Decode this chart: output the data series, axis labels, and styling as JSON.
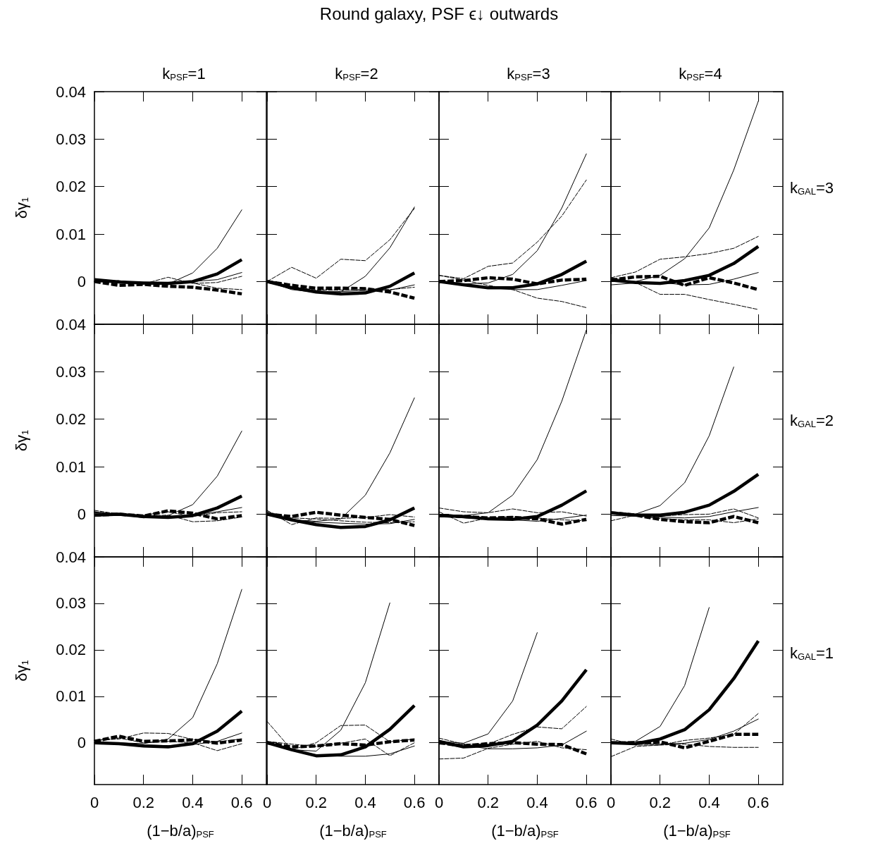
{
  "chart_data": [
    {
      "type": "line",
      "annotations": [
        "Round galaxy, PSF ϵ↓ outwards"
      ],
      "title": "k$_{PSF}$=1",
      "ylabel": "δγ$_{1}$",
      "tick_labels": "y",
      "x": [
        0,
        0.1,
        0.2,
        0.3,
        0.4,
        0.5,
        0.6
      ],
      "xlim": [
        0,
        0.7
      ],
      "xticks": [
        0,
        0.2,
        0.4,
        0.6
      ],
      "ylim": [
        -0.009,
        0.04
      ],
      "yticks": [
        0,
        0.01,
        0.02,
        0.03,
        0.04
      ],
      "series": [
        {
          "color": "#000000",
          "line_style": "solid",
          "values": [
            0.0004,
            -0.0001,
            -0.0003,
            -0.0004,
            0,
            0.0016,
            0.0046
          ]
        },
        {
          "color": "#000000",
          "line_style": "dashed",
          "values": [
            0,
            -0.0008,
            -0.0006,
            -0.001,
            -0.0012,
            -0.0018,
            -0.0026
          ]
        },
        {
          "color": "#000000",
          "line_style": "solid",
          "values": [
            0,
            -0.0003,
            -0.0005,
            -0.0005,
            0.0018,
            0.007,
            0.0151
          ]
        },
        {
          "color": "#000000",
          "line_style": "solid",
          "values": [
            0,
            -0.0002,
            -0.0004,
            -0.0004,
            0,
            0.0004,
            0.0019
          ]
        },
        {
          "color": "#000000",
          "line_style": "dashed",
          "values": [
            0,
            0.0002,
            -0.0005,
            0.0009,
            -0.0004,
            -0.0002,
            0.0011
          ]
        },
        {
          "color": "#000000",
          "line_style": "dashed",
          "values": [
            0,
            0,
            -0.0006,
            -0.0004,
            -0.0003,
            -0.0014,
            -0.0017
          ]
        }
      ]
    },
    {
      "type": "line",
      "title": "k$_{PSF}$=2",
      "tick_labels": false,
      "x": [
        0,
        0.1,
        0.2,
        0.3,
        0.4,
        0.5,
        0.6
      ],
      "xlim": [
        0,
        0.7
      ],
      "xticks": [
        0,
        0.2,
        0.4,
        0.6
      ],
      "ylim": [
        -0.009,
        0.04
      ],
      "yticks": [
        0,
        0.01,
        0.02,
        0.03,
        0.04
      ],
      "series": [
        {
          "color": "#000000",
          "line_style": "solid",
          "values": [
            0,
            -0.0013,
            -0.0022,
            -0.0026,
            -0.0024,
            -0.001,
            0.0018
          ]
        },
        {
          "color": "#000000",
          "line_style": "dashed",
          "values": [
            0,
            -0.0008,
            -0.0014,
            -0.0014,
            -0.0015,
            -0.0022,
            -0.0035
          ]
        },
        {
          "color": "#000000",
          "line_style": "solid",
          "values": [
            0,
            -0.0015,
            -0.002,
            -0.0022,
            0.0011,
            0.0071,
            0.0157
          ]
        },
        {
          "color": "#000000",
          "line_style": "solid",
          "values": [
            0,
            -0.0017,
            -0.0023,
            -0.0021,
            -0.0019,
            -0.0018,
            -0.0007
          ]
        },
        {
          "color": "#000000",
          "line_style": "dashed",
          "values": [
            0,
            0.003,
            0.0007,
            0.0047,
            0.0044,
            0.0088,
            0.0154
          ]
        },
        {
          "color": "#000000",
          "line_style": "dashed",
          "values": [
            0,
            -0.0011,
            -0.0018,
            -0.0018,
            -0.0016,
            -0.0017,
            -0.0012
          ]
        }
      ]
    },
    {
      "type": "line",
      "title": "k$_{PSF}$=3",
      "tick_labels": false,
      "x": [
        0,
        0.1,
        0.2,
        0.3,
        0.4,
        0.5,
        0.6
      ],
      "xlim": [
        0,
        0.7
      ],
      "xticks": [
        0,
        0.2,
        0.4,
        0.6
      ],
      "ylim": [
        -0.009,
        0.04
      ],
      "yticks": [
        0,
        0.01,
        0.02,
        0.03,
        0.04
      ],
      "series": [
        {
          "color": "#000000",
          "line_style": "solid",
          "values": [
            0,
            -0.0007,
            -0.0013,
            -0.0013,
            -0.0005,
            0.0015,
            0.0043
          ]
        },
        {
          "color": "#000000",
          "line_style": "dashed",
          "values": [
            0,
            0.0002,
            0.0008,
            0.0005,
            -0.0005,
            0.0003,
            0.0005
          ]
        },
        {
          "color": "#000000",
          "line_style": "solid",
          "values": [
            0,
            -0.0005,
            -0.0003,
            0.0015,
            0.0065,
            0.0155,
            0.0269
          ]
        },
        {
          "color": "#000000",
          "line_style": "solid",
          "values": [
            0,
            -0.0007,
            -0.0013,
            -0.0017,
            -0.0017,
            -0.0008,
            0.0002
          ]
        },
        {
          "color": "#000000",
          "line_style": "dashed",
          "values": [
            0.0013,
            0.0006,
            0.0032,
            0.0039,
            0.0083,
            0.0138,
            0.0214
          ]
        },
        {
          "color": "#000000",
          "line_style": "dashed",
          "values": [
            0.0013,
            0.0003,
            -0.0008,
            -0.0017,
            -0.0035,
            -0.0042,
            -0.0055
          ]
        }
      ]
    },
    {
      "type": "line",
      "title": "k$_{PSF}$=4",
      "y2label": "k$_{GAL}$=3",
      "tick_labels": false,
      "x": [
        0,
        0.1,
        0.2,
        0.3,
        0.4,
        0.5,
        0.6
      ],
      "xlim": [
        0,
        0.7
      ],
      "xticks": [
        0,
        0.2,
        0.4,
        0.6
      ],
      "ylim": [
        -0.009,
        0.04
      ],
      "yticks": [
        0,
        0.01,
        0.02,
        0.03,
        0.04
      ],
      "series": [
        {
          "color": "#000000",
          "line_style": "solid",
          "values": [
            0.0003,
            -0.0002,
            -0.0004,
            0.0002,
            0.0013,
            0.0038,
            0.0074
          ]
        },
        {
          "color": "#000000",
          "line_style": "dashed",
          "values": [
            0.0003,
            0.001,
            0.0011,
            -0.0008,
            0.0008,
            -0.0003,
            -0.0017
          ]
        },
        {
          "color": "#000000",
          "line_style": "solid",
          "values": [
            0,
            0,
            0.0013,
            0.0048,
            0.0113,
            0.0235,
            0.038
          ]
        },
        {
          "color": "#000000",
          "line_style": "solid",
          "values": [
            -0.0007,
            -0.0003,
            -0.0002,
            -0.0007,
            -0.0006,
            0.0005,
            0.0019
          ]
        },
        {
          "color": "#000000",
          "line_style": "dashed",
          "values": [
            0.0008,
            0.002,
            0.0047,
            0.0052,
            0.0059,
            0.007,
            0.0095
          ]
        },
        {
          "color": "#000000",
          "line_style": "dashed",
          "values": [
            0.0008,
            -0.0002,
            -0.0027,
            -0.0027,
            -0.0038,
            -0.0048,
            -0.0059
          ]
        }
      ]
    },
    {
      "type": "line",
      "ylabel": "δγ$_{1}$",
      "tick_labels": "y",
      "x": [
        0,
        0.1,
        0.2,
        0.3,
        0.4,
        0.5,
        0.6
      ],
      "xlim": [
        0,
        0.7
      ],
      "xticks": [
        0,
        0.2,
        0.4,
        0.6
      ],
      "ylim": [
        -0.009,
        0.04
      ],
      "yticks": [
        0,
        0.01,
        0.02,
        0.03,
        0.04
      ],
      "series": [
        {
          "color": "#000000",
          "line_style": "solid",
          "values": [
            -0.0002,
            0,
            -0.0005,
            -0.0007,
            -0.0003,
            0.0013,
            0.0038
          ]
        },
        {
          "color": "#000000",
          "line_style": "dashed",
          "values": [
            -0.0002,
            0,
            -0.0004,
            0.0007,
            0.0002,
            -0.001,
            -0.0003
          ]
        },
        {
          "color": "#000000",
          "line_style": "solid",
          "values": [
            0.0003,
            0,
            -0.0008,
            -0.0003,
            0.002,
            0.008,
            0.0175
          ]
        },
        {
          "color": "#000000",
          "line_style": "solid",
          "values": [
            0.0005,
            -0.0001,
            -0.0006,
            -0.0005,
            -0.0002,
            0.0005,
            0.0014
          ]
        },
        {
          "color": "#000000",
          "line_style": "dashed",
          "values": [
            0.0008,
            0,
            -0.0002,
            0.0005,
            -0.0005,
            0.0003,
            0.0005
          ]
        },
        {
          "color": "#000000",
          "line_style": "dashed",
          "values": [
            0.0005,
            0,
            -0.0004,
            -0.0002,
            -0.0016,
            -0.0014,
            -0.0006
          ]
        }
      ]
    },
    {
      "type": "line",
      "tick_labels": false,
      "x": [
        0,
        0.1,
        0.2,
        0.3,
        0.4,
        0.5,
        0.6
      ],
      "xlim": [
        0,
        0.7
      ],
      "xticks": [
        0,
        0.2,
        0.4,
        0.6
      ],
      "ylim": [
        -0.009,
        0.04
      ],
      "yticks": [
        0,
        0.01,
        0.02,
        0.03,
        0.04
      ],
      "series": [
        {
          "color": "#000000",
          "line_style": "solid",
          "values": [
            0,
            -0.0012,
            -0.0022,
            -0.0028,
            -0.0026,
            -0.0012,
            0.0013
          ]
        },
        {
          "color": "#000000",
          "line_style": "dashed",
          "values": [
            0,
            -0.0005,
            0.0004,
            -0.0002,
            -0.0007,
            -0.0011,
            -0.0024
          ]
        },
        {
          "color": "#000000",
          "line_style": "solid",
          "values": [
            0,
            -0.0012,
            -0.0015,
            -0.001,
            0.004,
            0.0129,
            0.0245
          ]
        },
        {
          "color": "#000000",
          "line_style": "solid",
          "values": [
            0,
            -0.0012,
            -0.0017,
            -0.0019,
            -0.0021,
            -0.002,
            -0.0011
          ]
        },
        {
          "color": "#000000",
          "line_style": "dashed",
          "values": [
            0.0008,
            -0.0022,
            -0.0008,
            -0.0009,
            -0.0007,
            -0.0001,
            -0.0006
          ]
        },
        {
          "color": "#000000",
          "line_style": "dashed",
          "values": [
            0.0005,
            -0.0008,
            -0.001,
            -0.0014,
            -0.0017,
            -0.0018,
            -0.0016
          ]
        }
      ]
    },
    {
      "type": "line",
      "tick_labels": false,
      "x": [
        0,
        0.1,
        0.2,
        0.3,
        0.4,
        0.5,
        0.6
      ],
      "xlim": [
        0,
        0.7
      ],
      "xticks": [
        0,
        0.2,
        0.4,
        0.6
      ],
      "ylim": [
        -0.009,
        0.04
      ],
      "yticks": [
        0,
        0.01,
        0.02,
        0.03,
        0.04
      ],
      "series": [
        {
          "color": "#000000",
          "line_style": "solid",
          "values": [
            -0.0003,
            -0.0005,
            -0.001,
            -0.0011,
            -0.0005,
            0.0019,
            0.0049
          ]
        },
        {
          "color": "#000000",
          "line_style": "dashed",
          "values": [
            -0.0003,
            -0.0005,
            -0.0008,
            -0.0007,
            -0.001,
            -0.0021,
            -0.0011
          ]
        },
        {
          "color": "#000000",
          "line_style": "solid",
          "values": [
            0,
            -0.0003,
            0.0003,
            0.004,
            0.0115,
            0.0238,
            0.0388
          ]
        },
        {
          "color": "#000000",
          "line_style": "solid",
          "values": [
            -0.0003,
            -0.0008,
            -0.001,
            -0.0012,
            -0.0015,
            -0.0009,
            -0.0002
          ]
        },
        {
          "color": "#000000",
          "line_style": "dashed",
          "values": [
            0.0013,
            0.0005,
            0.0003,
            0.0011,
            0.0003,
            0.0005,
            -0.0004
          ]
        },
        {
          "color": "#000000",
          "line_style": "dashed",
          "values": [
            0.0005,
            -0.0019,
            -0.0008,
            -0.0005,
            -0.0008,
            -0.0012,
            -0.0014
          ]
        }
      ]
    },
    {
      "type": "line",
      "y2label": "k$_{GAL}$=2",
      "tick_labels": false,
      "x": [
        0,
        0.1,
        0.2,
        0.3,
        0.4,
        0.5,
        0.6
      ],
      "xlim": [
        0,
        0.7
      ],
      "xticks": [
        0,
        0.2,
        0.4,
        0.6
      ],
      "ylim": [
        -0.009,
        0.04
      ],
      "yticks": [
        0,
        0.01,
        0.02,
        0.03,
        0.04
      ],
      "series": [
        {
          "color": "#000000",
          "line_style": "solid",
          "values": [
            0.0003,
            -0.0002,
            -0.0002,
            0.0004,
            0.0019,
            0.0048,
            0.0084
          ]
        },
        {
          "color": "#000000",
          "line_style": "dashed",
          "values": [
            0.0003,
            -0.0002,
            -0.0011,
            -0.0016,
            -0.0018,
            -0.0005,
            -0.0018
          ]
        },
        {
          "color": "#000000",
          "line_style": "solid",
          "values": [
            0,
            0,
            0.0018,
            0.0066,
            0.0165,
            0.031,
            null
          ]
        },
        {
          "color": "#000000",
          "line_style": "solid",
          "values": [
            -0.0003,
            -0.0004,
            -0.0006,
            -0.0008,
            -0.0005,
            0.0005,
            0.0014
          ]
        },
        {
          "color": "#000000",
          "line_style": "dashed",
          "values": [
            -0.0014,
            -0.0002,
            -0.0004,
            -0.0001,
            0,
            0.0011,
            -0.0008
          ]
        },
        {
          "color": "#000000",
          "line_style": "dashed",
          "values": [
            0,
            -0.0004,
            -0.0009,
            -0.0012,
            -0.0012,
            -0.0018,
            -0.001
          ]
        }
      ]
    },
    {
      "type": "line",
      "xlabel": "(1−b/a)$_{PSF}$",
      "ylabel": "δγ$_{1}$",
      "x": [
        0,
        0.1,
        0.2,
        0.3,
        0.4,
        0.5,
        0.6
      ],
      "xlim": [
        0,
        0.7
      ],
      "xticks": [
        0,
        0.2,
        0.4,
        0.6
      ],
      "ylim": [
        -0.009,
        0.04
      ],
      "yticks": [
        0,
        0.01,
        0.02,
        0.03,
        0.04
      ],
      "series": [
        {
          "color": "#000000",
          "line_style": "solid",
          "values": [
            0,
            -0.0002,
            -0.0007,
            -0.0009,
            -0.0002,
            0.0025,
            0.0068
          ]
        },
        {
          "color": "#000000",
          "line_style": "dashed",
          "values": [
            0.0003,
            0.0014,
            0.0003,
            0.0004,
            0.0006,
            -0.0001,
            0.0006
          ]
        },
        {
          "color": "#000000",
          "line_style": "solid",
          "values": [
            0,
            0,
            -0.0002,
            0.0008,
            0.0054,
            0.017,
            0.033
          ]
        },
        {
          "color": "#000000",
          "line_style": "solid",
          "values": [
            0,
            -0.0002,
            -0.0005,
            -0.0006,
            -0.0004,
            0.0003,
            0.0021
          ]
        },
        {
          "color": "#000000",
          "line_style": "dashed",
          "values": [
            0.0005,
            0.0008,
            0.0021,
            0.002,
            0.0007,
            0.0002,
            0.0008
          ]
        },
        {
          "color": "#000000",
          "line_style": "dashed",
          "values": [
            0.0005,
            0.001,
            0,
            0.0003,
            0,
            -0.0017,
            -0.0002
          ]
        }
      ]
    },
    {
      "type": "line",
      "xlabel": "(1−b/a)$_{PSF}$",
      "tick_labels": "x",
      "x": [
        0,
        0.1,
        0.2,
        0.3,
        0.4,
        0.5,
        0.6
      ],
      "xlim": [
        0,
        0.7
      ],
      "xticks": [
        0,
        0.2,
        0.4,
        0.6
      ],
      "ylim": [
        -0.009,
        0.04
      ],
      "yticks": [
        0,
        0.01,
        0.02,
        0.03,
        0.04
      ],
      "series": [
        {
          "color": "#000000",
          "line_style": "solid",
          "values": [
            0,
            -0.0015,
            -0.0028,
            -0.0026,
            -0.0009,
            0.0029,
            0.008
          ]
        },
        {
          "color": "#000000",
          "line_style": "dashed",
          "values": [
            0,
            -0.0009,
            -0.0007,
            -0.0002,
            -0.0005,
            0.0002,
            0.0006
          ]
        },
        {
          "color": "#000000",
          "line_style": "solid",
          "values": [
            0,
            -0.0015,
            -0.0018,
            0.0027,
            0.0129,
            0.0301,
            null
          ]
        },
        {
          "color": "#000000",
          "line_style": "solid",
          "values": [
            0,
            -0.0015,
            -0.0026,
            -0.0029,
            -0.0029,
            -0.0024,
            -0.0007
          ]
        },
        {
          "color": "#000000",
          "line_style": "dashed",
          "values": [
            0.0046,
            -0.0015,
            0,
            0.0037,
            0.0038,
            0.0002,
            0.0008
          ]
        },
        {
          "color": "#000000",
          "line_style": "dashed",
          "values": [
            0.0003,
            -0.0003,
            -0.0008,
            -0.0001,
            0.0008,
            -0.0028,
            0
          ]
        }
      ]
    },
    {
      "type": "line",
      "xlabel": "(1−b/a)$_{PSF}$",
      "tick_labels": "x",
      "x": [
        0,
        0.1,
        0.2,
        0.3,
        0.4,
        0.5,
        0.6
      ],
      "xlim": [
        0,
        0.7
      ],
      "xticks": [
        0,
        0.2,
        0.4,
        0.6
      ],
      "ylim": [
        -0.009,
        0.04
      ],
      "yticks": [
        0,
        0.01,
        0.02,
        0.03,
        0.04
      ],
      "series": [
        {
          "color": "#000000",
          "line_style": "solid",
          "values": [
            0.0003,
            -0.0009,
            -0.0006,
            0.0003,
            0.0038,
            0.009,
            0.0157
          ]
        },
        {
          "color": "#000000",
          "line_style": "dashed",
          "values": [
            0,
            -0.0007,
            -0.0002,
            0,
            -0.0003,
            -0.0004,
            -0.0024
          ]
        },
        {
          "color": "#000000",
          "line_style": "solid",
          "values": [
            0.0003,
            -0.0001,
            0.0019,
            0.009,
            0.0237,
            null,
            null
          ]
        },
        {
          "color": "#000000",
          "line_style": "solid",
          "values": [
            0.0003,
            -0.0005,
            -0.0013,
            -0.0013,
            -0.0011,
            -0.0005,
            0.0025
          ]
        },
        {
          "color": "#000000",
          "line_style": "dashed",
          "values": [
            0.001,
            -0.0003,
            -0.0003,
            0.0018,
            0.0034,
            0.003,
            0.0078
          ]
        },
        {
          "color": "#000000",
          "line_style": "dashed",
          "values": [
            -0.0035,
            -0.0033,
            -0.0012,
            -0.0003,
            0.0003,
            -0.0011,
            -0.0015
          ]
        }
      ]
    },
    {
      "type": "line",
      "xlabel": "(1−b/a)$_{PSF}$",
      "y2label": "k$_{GAL}$=1",
      "tick_labels": "x",
      "x": [
        0,
        0.1,
        0.2,
        0.3,
        0.4,
        0.5,
        0.6
      ],
      "xlim": [
        0,
        0.7
      ],
      "xticks": [
        0,
        0.2,
        0.4,
        0.6
      ],
      "ylim": [
        -0.009,
        0.04
      ],
      "yticks": [
        0,
        0.01,
        0.02,
        0.03,
        0.04
      ],
      "series": [
        {
          "color": "#000000",
          "line_style": "solid",
          "values": [
            0,
            -0.0002,
            0.0008,
            0.0028,
            0.0071,
            0.0138,
            0.0219
          ]
        },
        {
          "color": "#000000",
          "line_style": "dashed",
          "values": [
            0,
            0,
            0.0002,
            -0.0011,
            0.0003,
            0.0018,
            0.0018
          ]
        },
        {
          "color": "#000000",
          "line_style": "solid",
          "values": [
            0,
            0.0003,
            0.0035,
            0.0123,
            0.0291,
            null,
            null
          ]
        },
        {
          "color": "#000000",
          "line_style": "solid",
          "values": [
            0,
            -0.0002,
            -0.0003,
            -0.0001,
            0.0007,
            0.0025,
            0.0051
          ]
        },
        {
          "color": "#000000",
          "line_style": "dashed",
          "values": [
            0.0008,
            -0.0005,
            -0.0005,
            0.0005,
            0.001,
            0.0018,
            0.0063
          ]
        },
        {
          "color": "#000000",
          "line_style": "dashed",
          "values": [
            -0.003,
            -0.0008,
            -0.0005,
            -0.0003,
            -0.0008,
            -0.001,
            -0.001
          ]
        }
      ]
    }
  ]
}
